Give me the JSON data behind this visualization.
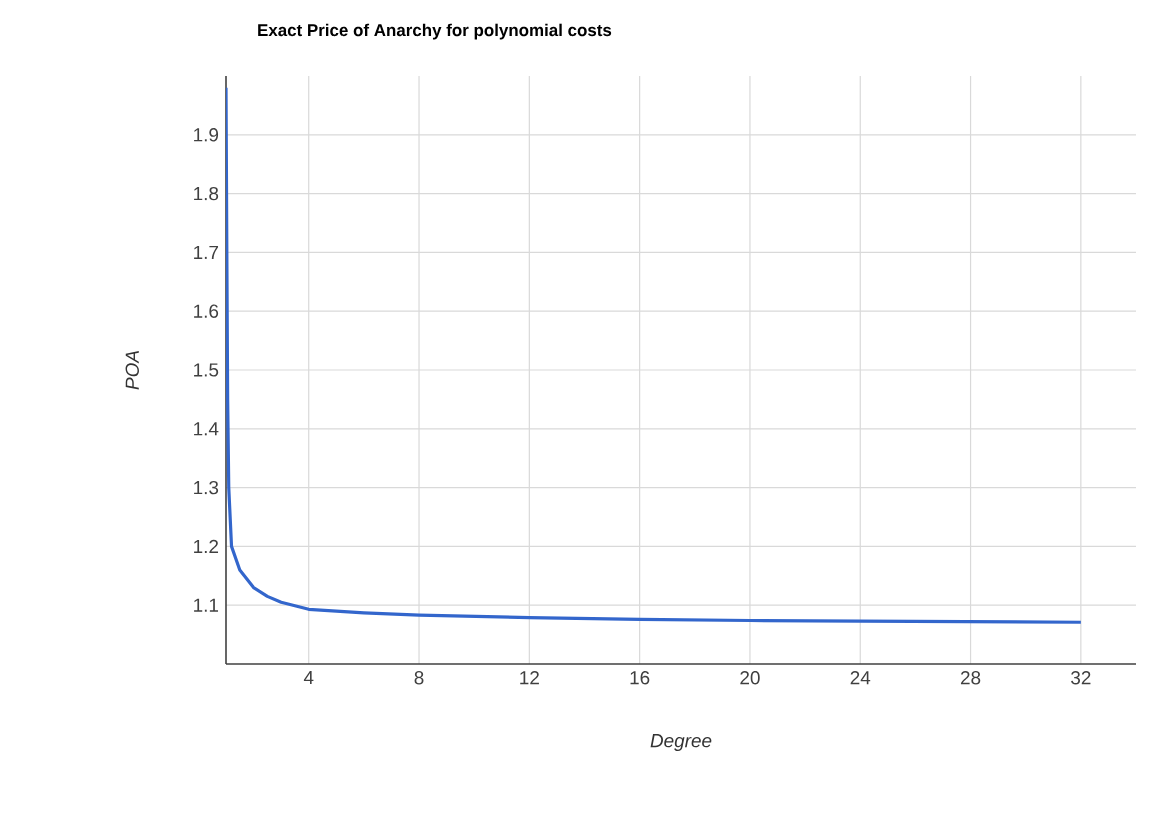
{
  "chart_data": {
    "type": "line",
    "title": "Exact Price of Anarchy for polynomial costs",
    "xlabel": "Degree",
    "ylabel": "POA",
    "xlim": [
      1,
      34
    ],
    "ylim": [
      1.0,
      2.0
    ],
    "xticks": [
      4,
      8,
      12,
      16,
      20,
      24,
      28,
      32
    ],
    "yticks": [
      1.1,
      1.2,
      1.3,
      1.4,
      1.5,
      1.6,
      1.7,
      1.8,
      1.9
    ],
    "grid": true,
    "series": [
      {
        "color": "#3366cc",
        "x": [
          1,
          1.03,
          1.06,
          1.1,
          1.2,
          1.5,
          2,
          2.5,
          3,
          4,
          6,
          8,
          12,
          16,
          20,
          24,
          28,
          32
        ],
        "values": [
          1.98,
          1.7,
          1.45,
          1.3,
          1.2,
          1.16,
          1.13,
          1.115,
          1.105,
          1.093,
          1.087,
          1.083,
          1.079,
          1.076,
          1.074,
          1.073,
          1.072,
          1.071
        ]
      }
    ]
  }
}
